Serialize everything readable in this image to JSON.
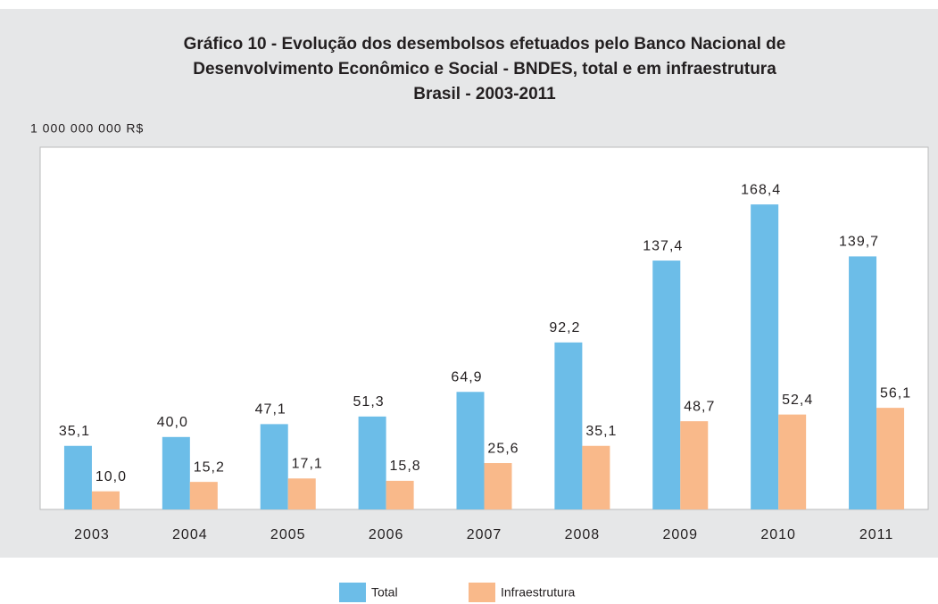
{
  "chart_data": {
    "type": "bar",
    "title": [
      "Gráfico 10 - Evolução dos desembolsos efetuados pelo Banco Nacional de",
      "Desenvolvimento Econômico e Social - BNDES, total e em infraestrutura",
      "Brasil - 2003-2011"
    ],
    "y_axis_label": "1 000 000 000 R$",
    "categories": [
      "2003",
      "2004",
      "2005",
      "2006",
      "2007",
      "2008",
      "2009",
      "2010",
      "2011"
    ],
    "series": [
      {
        "name": "Total",
        "color": "#6cbde8",
        "values": [
          35.1,
          40.0,
          47.1,
          51.3,
          64.9,
          92.2,
          137.4,
          168.4,
          139.7
        ],
        "value_labels": [
          "35,1",
          "40,0",
          "47,1",
          "51,3",
          "64,9",
          "92,2",
          "137,4",
          "168,4",
          "139,7"
        ]
      },
      {
        "name": "Infraestrutura",
        "color": "#f9b98a",
        "values": [
          10.0,
          15.2,
          17.1,
          15.8,
          25.6,
          35.1,
          48.7,
          52.4,
          56.1
        ],
        "value_labels": [
          "10,0",
          "15,2",
          "17,1",
          "15,8",
          "25,6",
          "35,1",
          "48,7",
          "52,4",
          "56,1"
        ]
      }
    ],
    "ylim": [
      0,
      200
    ],
    "legend": "bottom"
  }
}
